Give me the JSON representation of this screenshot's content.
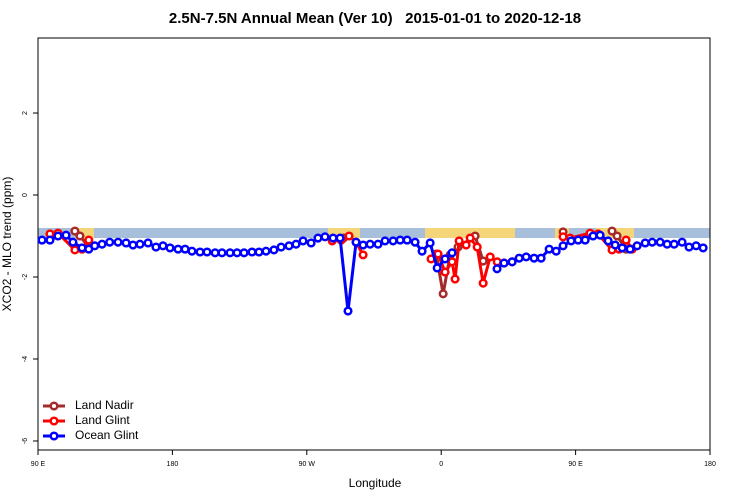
{
  "chart_data": {
    "type": "line",
    "title": "2.5N-7.5N Annual Mean (Ver 10)   2015-01-01 to 2020-12-18",
    "xlabel": "Longitude",
    "ylabel": "XCO2 - MLO trend (ppm)",
    "xlim": [
      90,
      540
    ],
    "ylim": [
      -6.22,
      3.83
    ],
    "xticks": [
      {
        "value": 90,
        "label": "90 E"
      },
      180,
      {
        "value": 270,
        "label": "90 W"
      },
      {
        "value": 360,
        "label": "0"
      },
      {
        "value": 450,
        "label": "90 E"
      },
      {
        "value": 540,
        "label": "180"
      }
    ],
    "yticks": [
      -6,
      -4,
      -2,
      0,
      2
    ],
    "legend": "bottom-left",
    "series": [
      {
        "name": "Land Nadir",
        "color": "#a52a2a",
        "x": [
          114.7,
          118.1,
          124,
          200,
          294.6,
          330,
          356.6,
          361.3,
          366,
          371.3,
          382.7,
          388.1,
          420,
          441.6,
          460,
          474.4,
          477.8,
          483.8
        ],
        "values": [
          -0.88,
          -1.0,
          -1.27,
          null,
          -1.05,
          null,
          -1.44,
          -2.41,
          -1.46,
          -1.27,
          -1.0,
          -1.61,
          null,
          -0.9,
          null,
          -0.88,
          -1.0,
          -1.32
        ]
      },
      {
        "name": "Land Glint",
        "color": "#ff0000",
        "x": [
          98,
          103.4,
          114.7,
          119.5,
          124,
          200,
          287,
          293,
          298.3,
          303,
          307.7,
          330,
          353.2,
          357.9,
          362.6,
          367.3,
          369.3,
          372,
          376.7,
          379.4,
          384.1,
          388.1,
          392.8,
          397.5,
          402.1,
          407.5,
          420,
          441.6,
          446.3,
          459.7,
          465,
          474.4,
          479.1,
          483.8,
          487.8
        ],
        "values": [
          -0.95,
          -0.93,
          -1.34,
          -1.32,
          -1.1,
          null,
          -1.12,
          -1.1,
          -1.0,
          -1.15,
          -1.46,
          null,
          -1.56,
          -1.44,
          -1.88,
          -1.63,
          -2.05,
          -1.12,
          -1.22,
          -1.05,
          -1.27,
          -2.15,
          -1.51,
          -1.63,
          -1.66,
          -1.63,
          null,
          -1.02,
          -1.05,
          -0.93,
          -0.95,
          -1.34,
          -1.32,
          -1.1,
          -1.32
        ]
      },
      {
        "name": "Ocean Glint",
        "color": "#0000ff",
        "x": [
          92.7,
          98,
          103.4,
          108.8,
          113.4,
          119.5,
          124,
          128,
          132.9,
          138,
          143.6,
          149,
          153.6,
          158.3,
          163.7,
          169,
          173.7,
          178.4,
          183.8,
          188.5,
          193.1,
          198.5,
          203.2,
          208.6,
          213.2,
          218.6,
          223.3,
          228,
          233.3,
          238,
          242.7,
          248,
          252.8,
          258.1,
          262.8,
          267.5,
          272.9,
          277.5,
          282.2,
          287.6,
          292.3,
          297.6,
          303,
          307.7,
          312.4,
          317.7,
          322.4,
          327.8,
          332.5,
          337.2,
          342.5,
          347.2,
          352.6,
          357.3,
          362.6,
          367.3,
          380,
          397.4,
          402.1,
          407.5,
          412.2,
          416.9,
          422.2,
          426.9,
          432.3,
          437,
          441.6,
          447,
          451.7,
          456.4,
          461.7,
          466.4,
          471.8,
          476.5,
          481.2,
          486.5,
          491.2,
          496.6,
          501.3,
          506.6,
          511.3,
          516,
          521.3,
          526,
          530.7,
          535.4
        ],
        "values": [
          -1.1,
          -1.1,
          -1.0,
          -0.98,
          -1.15,
          -1.29,
          -1.32,
          -1.24,
          -1.2,
          -1.15,
          -1.15,
          -1.17,
          -1.22,
          -1.2,
          -1.17,
          -1.27,
          -1.24,
          -1.29,
          -1.32,
          -1.32,
          -1.37,
          -1.39,
          -1.39,
          -1.41,
          -1.41,
          -1.41,
          -1.41,
          -1.41,
          -1.39,
          -1.39,
          -1.37,
          -1.34,
          -1.27,
          -1.24,
          -1.2,
          -1.12,
          -1.17,
          -1.05,
          -1.02,
          -1.05,
          -1.05,
          -2.83,
          -1.15,
          -1.22,
          -1.2,
          -1.2,
          -1.12,
          -1.12,
          -1.1,
          -1.1,
          -1.15,
          -1.37,
          -1.17,
          -1.78,
          -1.56,
          -1.41,
          null,
          -1.8,
          -1.66,
          -1.63,
          -1.54,
          -1.51,
          -1.54,
          -1.54,
          -1.32,
          -1.37,
          -1.24,
          -1.12,
          -1.1,
          -1.1,
          -1.0,
          -0.98,
          -1.12,
          -1.22,
          -1.29,
          -1.32,
          -1.24,
          -1.17,
          -1.15,
          -1.15,
          -1.2,
          -1.2,
          -1.15,
          -1.27,
          -1.24,
          -1.29
        ]
      }
    ]
  }
}
